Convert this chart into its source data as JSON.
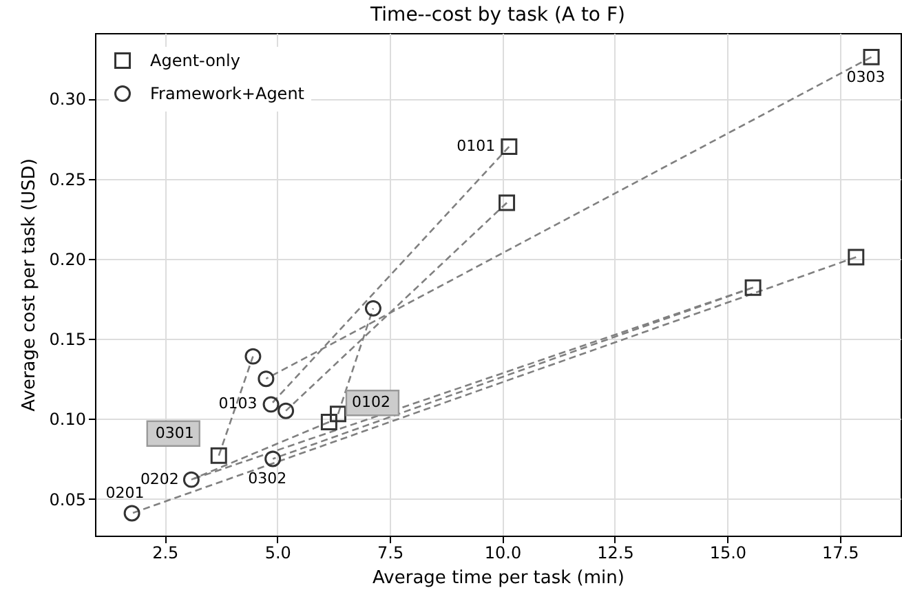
{
  "chart_data": {
    "type": "scatter",
    "title": "Time--cost by task (A to F)",
    "xlabel": "Average time per task (min)",
    "ylabel": "Average cost per task (USD)",
    "xlim": [
      0.95,
      18.85
    ],
    "ylim": [
      0.027,
      0.341
    ],
    "xticks": [
      2.5,
      {
        "value": 5,
        "label": "5.0"
      },
      7.5,
      {
        "value": 10,
        "label": "10.0"
      },
      12.5,
      {
        "value": 15,
        "label": "15.0"
      },
      17.5
    ],
    "yticks": [
      0.05,
      {
        "value": 0.1,
        "label": "0.10"
      },
      0.15,
      {
        "value": 0.2,
        "label": "0.20"
      },
      0.25,
      {
        "value": 0.3,
        "label": "0.30"
      }
    ],
    "grid": true,
    "legend": "top left",
    "line_style": "dashed",
    "series": [
      {
        "type": "line",
        "color": "#808080",
        "marker": "none",
        "x": [
          10.15,
          4.86
        ],
        "values": [
          0.27,
          0.109
        ]
      },
      {
        "type": "line",
        "color": "#808080",
        "marker": "none",
        "x": [
          10.1,
          5.19
        ],
        "values": [
          0.235,
          0.105
        ]
      },
      {
        "type": "line",
        "color": "#808080",
        "marker": "none",
        "x": [
          6.35,
          7.13
        ],
        "values": [
          0.103,
          0.169
        ]
      },
      {
        "type": "line",
        "color": "#808080",
        "marker": "none",
        "x": [
          18.2,
          4.75
        ],
        "values": [
          0.326,
          0.125
        ]
      },
      {
        "type": "line",
        "color": "#808080",
        "marker": "none",
        "x": [
          3.7,
          4.46
        ],
        "values": [
          0.077,
          0.139
        ]
      },
      {
        "type": "line",
        "color": "#808080",
        "marker": "none",
        "x": [
          17.86,
          1.77
        ],
        "values": [
          0.201,
          0.041
        ]
      },
      {
        "type": "line",
        "color": "#808080",
        "marker": "none",
        "x": [
          15.57,
          4.9
        ],
        "values": [
          0.182,
          0.075
        ]
      },
      {
        "type": "line",
        "color": "#808080",
        "marker": "none",
        "x": [
          15.57,
          3.09
        ],
        "values": [
          0.182,
          0.062
        ]
      },
      {
        "type": "line",
        "color": "#808080",
        "marker": "none",
        "x": [
          6.15,
          3.09
        ],
        "values": [
          0.098,
          0.062
        ]
      },
      {
        "name": "Agent-only",
        "type": "scatter",
        "color": "#333333",
        "marker": "square",
        "x": [
          10.15,
          10.1,
          18.2,
          17.86,
          15.57,
          6.35,
          6.15,
          3.7
        ],
        "values": [
          0.27,
          0.235,
          0.326,
          0.201,
          0.182,
          0.103,
          0.098,
          0.077
        ]
      },
      {
        "name": "Framework+Agent",
        "type": "scatter",
        "color": "#333333",
        "marker": "circle",
        "x": [
          7.13,
          4.46,
          4.75,
          4.86,
          5.19,
          4.9,
          3.09,
          1.77
        ],
        "values": [
          0.169,
          0.139,
          0.125,
          0.109,
          0.105,
          0.075,
          0.062,
          0.041
        ]
      }
    ],
    "annotations": [
      {
        "text": "0101",
        "x": 10.15,
        "y": 0.27
      },
      {
        "text": "0303",
        "x": 18.2,
        "y": 0.326
      },
      {
        "text": "0102",
        "x": 6.35,
        "y": 0.103
      },
      {
        "text": "0103",
        "x": 4.86,
        "y": 0.109
      },
      {
        "text": "0301",
        "x": 3.7,
        "y": 0.077
      },
      {
        "text": "0302",
        "x": 4.9,
        "y": 0.075
      },
      {
        "text": "0202",
        "x": 3.09,
        "y": 0.062
      },
      {
        "text": "0201",
        "x": 1.77,
        "y": 0.041
      }
    ]
  }
}
